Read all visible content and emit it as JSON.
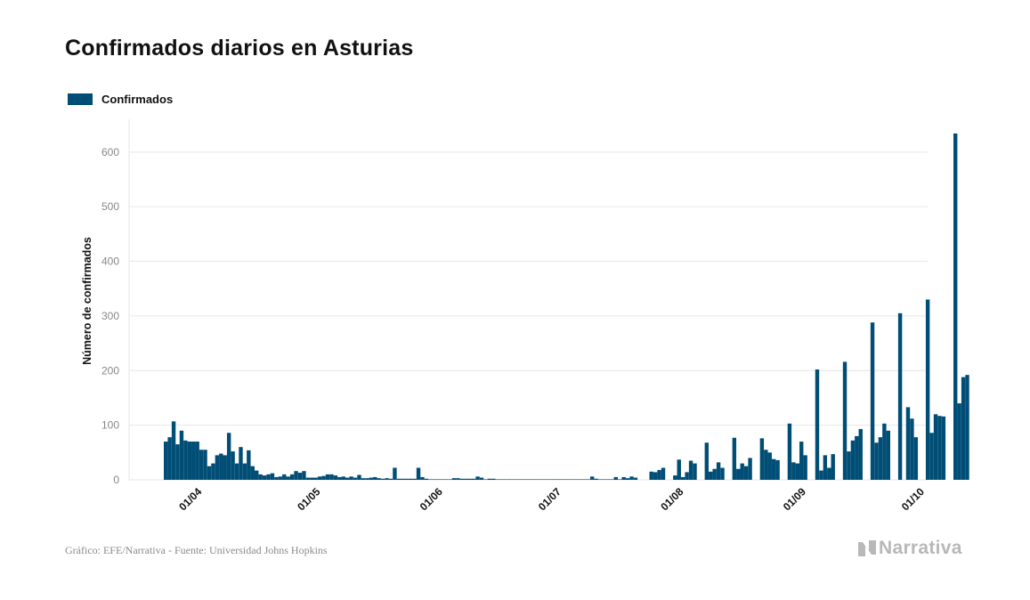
{
  "title": "Confirmados diarios en Asturias",
  "source": "Gráfico: EFE/Narrativa - Fuente: Universidad Johns Hopkins",
  "brand": "Narrativa",
  "colors": {
    "bar": "#004d75",
    "grid": "#e6e6e6",
    "tick_text": "#888888"
  },
  "chart_data": {
    "type": "bar",
    "title": "Confirmados diarios en Asturias",
    "xlabel": "",
    "ylabel": "Número de confirmados",
    "ylim": [
      0,
      660
    ],
    "yticks": [
      0,
      100,
      200,
      300,
      400,
      500,
      600
    ],
    "grid": true,
    "legend_position": "top-left",
    "x_tick_labels": [
      {
        "label": "01/04",
        "index": 7
      },
      {
        "label": "01/05",
        "index": 37
      },
      {
        "label": "01/06",
        "index": 68
      },
      {
        "label": "01/07",
        "index": 98
      },
      {
        "label": "01/08",
        "index": 129
      },
      {
        "label": "01/09",
        "index": 160
      },
      {
        "label": "01/10",
        "index": 190
      }
    ],
    "series": [
      {
        "name": "Confirmados",
        "values": [
          70,
          78,
          107,
          65,
          90,
          72,
          70,
          70,
          70,
          55,
          55,
          25,
          30,
          45,
          48,
          45,
          86,
          52,
          30,
          60,
          30,
          54,
          25,
          17,
          10,
          8,
          10,
          12,
          5,
          6,
          10,
          6,
          10,
          16,
          13,
          16,
          4,
          4,
          4,
          6,
          7,
          10,
          10,
          8,
          5,
          6,
          4,
          6,
          4,
          9,
          3,
          3,
          4,
          5,
          3,
          2,
          3,
          2,
          22,
          2,
          2,
          2,
          2,
          2,
          22,
          5,
          2,
          1,
          1,
          1,
          1,
          1,
          1,
          3,
          3,
          2,
          2,
          2,
          2,
          6,
          4,
          1,
          2,
          2,
          1,
          1,
          1,
          1,
          1,
          1,
          1,
          1,
          1,
          1,
          1,
          1,
          1,
          1,
          1,
          1,
          1,
          1,
          1,
          1,
          1,
          1,
          1,
          1,
          6,
          2,
          1,
          1,
          1,
          1,
          5,
          1,
          5,
          3,
          6,
          4,
          0,
          0,
          0,
          15,
          14,
          18,
          22,
          0,
          0,
          8,
          37,
          5,
          14,
          35,
          30,
          0,
          0,
          68,
          15,
          20,
          32,
          22,
          0,
          0,
          77,
          20,
          30,
          25,
          40,
          0,
          0,
          76,
          55,
          50,
          38,
          36,
          0,
          0,
          103,
          32,
          30,
          70,
          45,
          0,
          0,
          202,
          17,
          45,
          22,
          47,
          0,
          0,
          216,
          52,
          72,
          80,
          93,
          0,
          0,
          288,
          68,
          78,
          103,
          90,
          0,
          0,
          305,
          0,
          133,
          112,
          78,
          0,
          0,
          330,
          86,
          120,
          117,
          116,
          0,
          0,
          634,
          140,
          188,
          192
        ]
      }
    ]
  }
}
